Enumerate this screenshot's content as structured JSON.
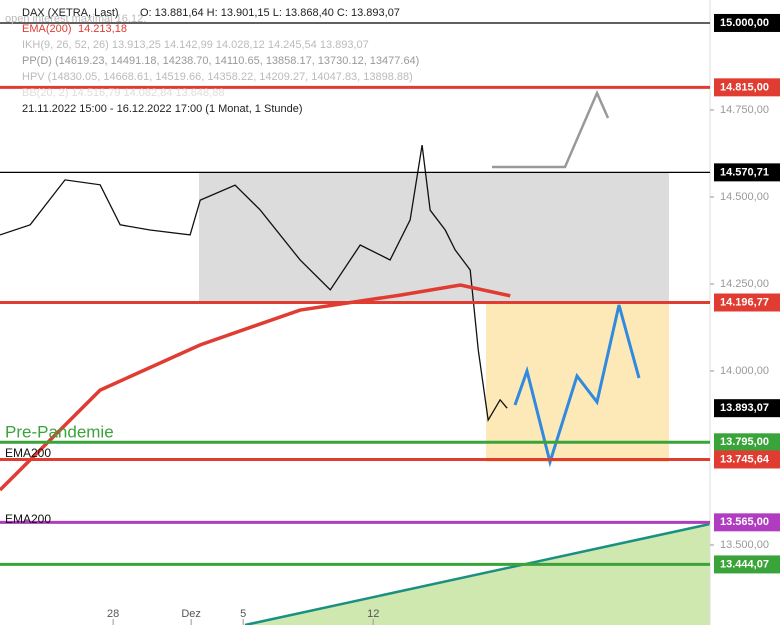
{
  "chart_data": {
    "type": "line",
    "header": {
      "ohlc": "O: 13.881,64  H: 13.901,15  L: 13.868,40  C: 13.893,07",
      "ema": "14.213,18",
      "ikh": "IKH(9, 26, 52, 26)  13.913,25  14.142,99  14.028,12  14.245,54  13.893,07",
      "pp": "PP(D)  (14619.23, 14491.18, 14238.70, 14110.65, 13858.17, 13730.12, 13477.64)",
      "hpv": "HPV  (14830.05, 14668.61, 14519.66, 14358.22, 14209.27, 14047.83, 13898.88)",
      "bb": "BB(20, 2)  14.516,79  14.082,84  13.648,88",
      "oi": "open interest maximal 16.12.",
      "range": "21.11.2022 15:00 - 16.12.2022 17:00   (1 Monat, 1 Stunde)"
    },
    "series": [
      {
        "name": "DAX (XETRA, Last)",
        "color": "#111111",
        "x": [
          0.65,
          1.81,
          3.15,
          4.5,
          5.27,
          6.42,
          7.96,
          8.35,
          9.69,
          10.65,
          12.19,
          13.35,
          14.5,
          15.65,
          16.42,
          16.88,
          17.19,
          17.77,
          18.15,
          18.73,
          19.04,
          19.42,
          19.88,
          20.15
        ],
        "values": [
          14391,
          14420,
          14549,
          14535,
          14420,
          14405,
          14391,
          14491,
          14534,
          14463,
          14319,
          14233,
          14362,
          14319,
          14434,
          14649,
          14462,
          14405,
          14348,
          14290,
          14060,
          13859,
          13917,
          13893
        ]
      },
      {
        "name": "EMA(200)",
        "color": "#e03c31",
        "x": [
          0.65,
          4.5,
          8.35,
          12.19,
          16.04,
          18.35,
          20.27
        ],
        "values": [
          13658,
          13945,
          14075,
          14175,
          14218,
          14247,
          14216
        ]
      }
    ],
    "levels": [
      {
        "value": 15000,
        "label": "15.000,00",
        "color": "#000000"
      },
      {
        "value": 14815,
        "label": "14.815,00",
        "color": "#e03c31"
      },
      {
        "value": 14570.71,
        "label": "14.570,71",
        "color": "#000000"
      },
      {
        "value": 14196.77,
        "label": "14.196,77",
        "color": "#e03c31"
      },
      {
        "value": 13893.07,
        "label": "13.893,07",
        "color": "#000000",
        "axis_only": true
      },
      {
        "value": 13795,
        "label": "13.795,00",
        "color": "#3aa43a"
      },
      {
        "value": 13745.64,
        "label": "13.745,64",
        "color": "#e03c31"
      },
      {
        "value": 13565,
        "label": "13.565,00",
        "color": "#b03cc0"
      },
      {
        "value": 13444.07,
        "label": "13.444,07",
        "color": "#3aa43a"
      }
    ],
    "annotations": [
      "Pre-Pandemie",
      "EMA200",
      "EMA200"
    ],
    "xlim": [
      0.65,
      27.95
    ],
    "xticks": [
      {
        "value": 5,
        "label": "28"
      },
      {
        "value": 8,
        "label": "Dez"
      },
      {
        "value": 10,
        "label": "5"
      },
      {
        "value": 15,
        "label": "12"
      }
    ],
    "ylim": [
      13270,
      15066
    ],
    "yticks": [
      {
        "value": 14750,
        "label": "14.750,00"
      },
      {
        "value": 14500,
        "label": "14.500,00"
      },
      {
        "value": 14250,
        "label": "14.250,00"
      },
      {
        "value": 14000,
        "label": "14.000,00"
      },
      {
        "value": 13500,
        "label": "13.500,00"
      }
    ]
  }
}
